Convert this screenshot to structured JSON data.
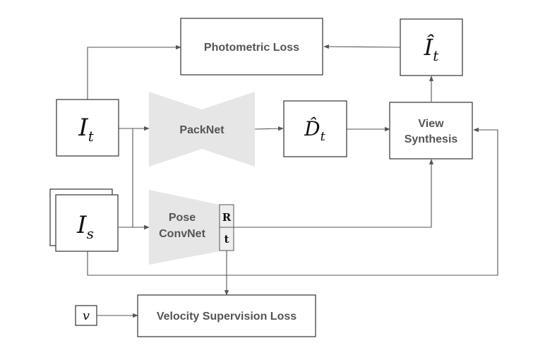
{
  "nodes": {
    "photometric_loss": "Photometric Loss",
    "packnet": "PackNet",
    "pose_convnet": [
      "Pose",
      "ConvNet"
    ],
    "view_synthesis": [
      "View",
      "Synthesis"
    ],
    "velocity_loss": "Velocity Supervision Loss",
    "target_image": {
      "base": "I",
      "sub": "t"
    },
    "source_image": {
      "base": "I",
      "sub": "s"
    },
    "synth_image": {
      "base": "Î",
      "sub": "t"
    },
    "depth": {
      "base": "D̂",
      "sub": "t"
    },
    "pose_rotation": "R",
    "pose_translation": "t",
    "velocity": "v"
  },
  "colors": {
    "network_fill": "#e6e6e6",
    "box_stroke": "#333333",
    "arrow": "#555555",
    "label": "#555555"
  }
}
